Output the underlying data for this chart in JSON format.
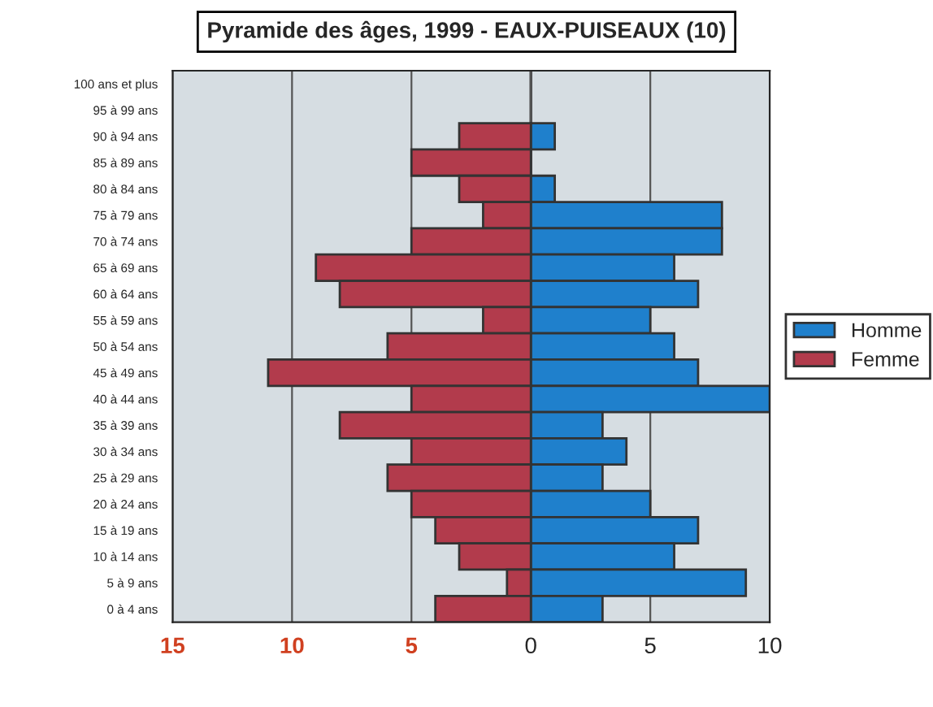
{
  "chart_data": {
    "type": "bar",
    "orientation": "horizontal",
    "title": "Pyramide des âges, 1999 - EAUX-PUISEAUX (10)",
    "categories": [
      "100 ans et plus",
      "95 à 99 ans",
      "90 à 94 ans",
      "85 à 89 ans",
      "80 à 84 ans",
      "75 à 79 ans",
      "70 à 74 ans",
      "65 à 69 ans",
      "60 à 64 ans",
      "55 à 59 ans",
      "50 à 54 ans",
      "45 à 49 ans",
      "40 à 44 ans",
      "35 à 39 ans",
      "30 à 34 ans",
      "25 à 29 ans",
      "20 à 24 ans",
      "15 à 19 ans",
      "10 à 14 ans",
      "5 à 9 ans",
      "0 à 4 ans"
    ],
    "series": [
      {
        "name": "Homme",
        "color": "#1f80cc",
        "values": [
          null,
          null,
          1,
          null,
          1,
          8,
          8,
          6,
          7,
          5,
          6,
          7,
          10,
          3,
          4,
          3,
          5,
          7,
          6,
          9,
          3
        ]
      },
      {
        "name": "Femme",
        "color": "#b23b4c",
        "values": [
          null,
          null,
          -3,
          -5,
          -3,
          -2,
          -5,
          -9,
          -8,
          -2,
          -6,
          -11,
          -5,
          -8,
          -5,
          -6,
          -5,
          -4,
          -3,
          -1,
          -4
        ]
      }
    ],
    "xlim": [
      -15,
      10
    ],
    "xticks": [
      {
        "value": -15,
        "label": "15"
      },
      {
        "value": -10,
        "label": "10"
      },
      {
        "value": -5,
        "label": "5"
      },
      0,
      5,
      10
    ],
    "stacked": true,
    "grid": "x",
    "legend": "right"
  }
}
